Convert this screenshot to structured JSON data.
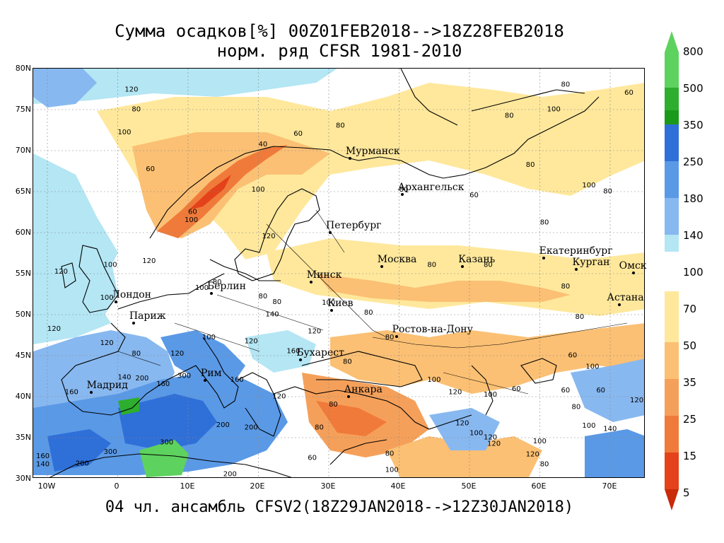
{
  "title_line1": "Сумма осадков[%] 00Z01FEB2018-->18Z28FEB2018",
  "title_line2": "норм. ряд CFSR 1981-2010",
  "footer": "04 чл. ансамбль CFSV2(18Z29JAN2018-->12Z30JAN2018)",
  "map": {
    "lat_labels": [
      "80N",
      "75N",
      "70N",
      "65N",
      "60N",
      "55N",
      "50N",
      "45N",
      "40N",
      "35N",
      "30N"
    ],
    "lon_labels": [
      "10W",
      "0",
      "10E",
      "20E",
      "30E",
      "40E",
      "50E",
      "60E",
      "70E"
    ],
    "extent": {
      "lon_min": -12,
      "lon_max": 75,
      "lat_min": 30,
      "lat_max": 80
    },
    "cities": [
      {
        "name": "Мурманск",
        "lon": 33.1,
        "lat": 68.97
      },
      {
        "name": "Архангельск",
        "lon": 40.5,
        "lat": 64.54
      },
      {
        "name": "Петербург",
        "lon": 30.3,
        "lat": 59.94
      },
      {
        "name": "Москва",
        "lon": 37.6,
        "lat": 55.75
      },
      {
        "name": "Казань",
        "lon": 49.1,
        "lat": 55.79
      },
      {
        "name": "Екатеринбург",
        "lon": 60.6,
        "lat": 56.84
      },
      {
        "name": "Курган",
        "lon": 65.3,
        "lat": 55.44
      },
      {
        "name": "Омск",
        "lon": 73.4,
        "lat": 54.99
      },
      {
        "name": "Минск",
        "lon": 27.56,
        "lat": 53.9
      },
      {
        "name": "Берлин",
        "lon": 13.4,
        "lat": 52.52
      },
      {
        "name": "Лондон",
        "lon": -0.13,
        "lat": 51.5
      },
      {
        "name": "Париж",
        "lon": 2.35,
        "lat": 48.86
      },
      {
        "name": "Киев",
        "lon": 30.52,
        "lat": 50.45
      },
      {
        "name": "Астана",
        "lon": 71.43,
        "lat": 51.13
      },
      {
        "name": "Ростов-на-Дону",
        "lon": 39.7,
        "lat": 47.23
      },
      {
        "name": "Бухарест",
        "lon": 26.1,
        "lat": 44.43
      },
      {
        "name": "Рим",
        "lon": 12.5,
        "lat": 41.9
      },
      {
        "name": "Мадрид",
        "lon": -3.7,
        "lat": 40.42
      },
      {
        "name": "Анкара",
        "lon": 32.86,
        "lat": 39.93
      }
    ],
    "contour_labels": [
      {
        "text": "120",
        "lon": 1,
        "lat": 77.2
      },
      {
        "text": "80",
        "lon": 2,
        "lat": 74.8
      },
      {
        "text": "100",
        "lon": 0,
        "lat": 72.0
      },
      {
        "text": "60",
        "lon": 4,
        "lat": 67.5
      },
      {
        "text": "60",
        "lon": 25,
        "lat": 71.8
      },
      {
        "text": "80",
        "lon": 31,
        "lat": 72.8
      },
      {
        "text": "40",
        "lon": 20,
        "lat": 70.5
      },
      {
        "text": "100",
        "lon": 19,
        "lat": 65.0
      },
      {
        "text": "60",
        "lon": 10,
        "lat": 62.3
      },
      {
        "text": "100",
        "lon": 9.5,
        "lat": 61.3
      },
      {
        "text": "120",
        "lon": 20.5,
        "lat": 59.3
      },
      {
        "text": "80",
        "lon": 63,
        "lat": 77.8
      },
      {
        "text": "100",
        "lon": 61,
        "lat": 74.8
      },
      {
        "text": "60",
        "lon": 72,
        "lat": 76.8
      },
      {
        "text": "80",
        "lon": 55,
        "lat": 74.0
      },
      {
        "text": "80",
        "lon": 58,
        "lat": 68.0
      },
      {
        "text": "100",
        "lon": 66,
        "lat": 65.5
      },
      {
        "text": "80",
        "lon": 69,
        "lat": 64.8
      },
      {
        "text": "80",
        "lon": 60,
        "lat": 61.0
      },
      {
        "text": "80",
        "lon": 40,
        "lat": 65.0
      },
      {
        "text": "60",
        "lon": 50,
        "lat": 64.3
      },
      {
        "text": "80",
        "lon": 44,
        "lat": 55.8
      },
      {
        "text": "80",
        "lon": 52,
        "lat": 55.8
      },
      {
        "text": "80",
        "lon": 63,
        "lat": 53.2
      },
      {
        "text": "80",
        "lon": 65,
        "lat": 49.5
      },
      {
        "text": "60",
        "lon": 64,
        "lat": 44.8
      },
      {
        "text": "100",
        "lon": 66.5,
        "lat": 43.4
      },
      {
        "text": "120",
        "lon": 3.5,
        "lat": 56.3
      },
      {
        "text": "100",
        "lon": -2,
        "lat": 55.8
      },
      {
        "text": "120",
        "lon": -9,
        "lat": 55.0
      },
      {
        "text": "100",
        "lon": -2.5,
        "lat": 51.8
      },
      {
        "text": "100",
        "lon": 11,
        "lat": 53.0
      },
      {
        "text": "80",
        "lon": 13.5,
        "lat": 53.7
      },
      {
        "text": "80",
        "lon": 20,
        "lat": 52.0
      },
      {
        "text": "140",
        "lon": 21,
        "lat": 49.8
      },
      {
        "text": "80",
        "lon": 22,
        "lat": 51.3
      },
      {
        "text": "100",
        "lon": 29,
        "lat": 51.2
      },
      {
        "text": "80",
        "lon": 35,
        "lat": 50.0
      },
      {
        "text": "120",
        "lon": -10,
        "lat": 48.0
      },
      {
        "text": "120",
        "lon": -2.5,
        "lat": 46.3
      },
      {
        "text": "80",
        "lon": 2,
        "lat": 45.0
      },
      {
        "text": "120",
        "lon": 7.5,
        "lat": 45.0
      },
      {
        "text": "100",
        "lon": 12,
        "lat": 47.0
      },
      {
        "text": "120",
        "lon": 18,
        "lat": 46.5
      },
      {
        "text": "120",
        "lon": 27,
        "lat": 47.7
      },
      {
        "text": "160",
        "lon": 24,
        "lat": 45.3
      },
      {
        "text": "300",
        "lon": 8.5,
        "lat": 42.3
      },
      {
        "text": "160",
        "lon": 5.5,
        "lat": 41.3
      },
      {
        "text": "140",
        "lon": 0,
        "lat": 42.1
      },
      {
        "text": "200",
        "lon": 2.5,
        "lat": 42.0
      },
      {
        "text": "160",
        "lon": -7.5,
        "lat": 40.3
      },
      {
        "text": "120",
        "lon": 22,
        "lat": 39.8
      },
      {
        "text": "160",
        "lon": 16,
        "lat": 41.8
      },
      {
        "text": "200",
        "lon": 14,
        "lat": 36.3
      },
      {
        "text": "200",
        "lon": 18,
        "lat": 36.0
      },
      {
        "text": "300",
        "lon": 6,
        "lat": 34.2
      },
      {
        "text": "300",
        "lon": -2,
        "lat": 33.0
      },
      {
        "text": "200",
        "lon": -6,
        "lat": 31.6
      },
      {
        "text": "160",
        "lon": -12,
        "lat": 32.5
      },
      {
        "text": "140",
        "lon": -13.5,
        "lat": 31.5
      },
      {
        "text": "200",
        "lon": 15,
        "lat": 30.3
      },
      {
        "text": "80",
        "lon": 28,
        "lat": 36.0
      },
      {
        "text": "60",
        "lon": 27,
        "lat": 32.3
      },
      {
        "text": "80",
        "lon": 38,
        "lat": 32.8
      },
      {
        "text": "100",
        "lon": 38,
        "lat": 30.8
      },
      {
        "text": "100",
        "lon": 44,
        "lat": 41.8
      },
      {
        "text": "120",
        "lon": 47,
        "lat": 40.3
      },
      {
        "text": "100",
        "lon": 52,
        "lat": 40.0
      },
      {
        "text": "60",
        "lon": 56,
        "lat": 40.7
      },
      {
        "text": "120",
        "lon": 48,
        "lat": 36.5
      },
      {
        "text": "100",
        "lon": 50,
        "lat": 35.3
      },
      {
        "text": "120",
        "lon": 52,
        "lat": 34.8
      },
      {
        "text": "120",
        "lon": 52.5,
        "lat": 34.0
      },
      {
        "text": "100",
        "lon": 59,
        "lat": 34.3
      },
      {
        "text": "120",
        "lon": 58,
        "lat": 32.7
      },
      {
        "text": "80",
        "lon": 60,
        "lat": 31.5
      },
      {
        "text": "80",
        "lon": 64.5,
        "lat": 38.5
      },
      {
        "text": "60",
        "lon": 63,
        "lat": 40.5
      },
      {
        "text": "100",
        "lon": 66,
        "lat": 36.2
      },
      {
        "text": "140",
        "lon": 69,
        "lat": 35.8
      },
      {
        "text": "120",
        "lon": 73,
        "lat": 39.3
      },
      {
        "text": "60",
        "lon": 68,
        "lat": 40.5
      },
      {
        "text": "80",
        "lon": 38,
        "lat": 47.0
      },
      {
        "text": "80",
        "lon": 30,
        "lat": 38.8
      },
      {
        "text": "80",
        "lon": 32,
        "lat": 44.0
      }
    ]
  },
  "legend": {
    "items": [
      {
        "label": "800",
        "color": "#5ed25e"
      },
      {
        "label": "500",
        "color": "#2eae2e"
      },
      {
        "label": "350",
        "color": "#1a9a1a"
      },
      {
        "label": "250",
        "color": "#2f6fd8"
      },
      {
        "label": "180",
        "color": "#5a99e6"
      },
      {
        "label": "140",
        "color": "#88b8f0"
      },
      {
        "label": "100",
        "color": "#b4e6f4"
      },
      {
        "label": "70",
        "color": "#ffffff"
      },
      {
        "label": "50",
        "color": "#ffe89c"
      },
      {
        "label": "35",
        "color": "#fbc074"
      },
      {
        "label": "25",
        "color": "#f5a05a"
      },
      {
        "label": "15",
        "color": "#f07a3a"
      },
      {
        "label": "5",
        "color": "#e4421a"
      }
    ],
    "bottom_color": "#c82a0a"
  },
  "colors": {
    "sea_wet": "#b4e6f4",
    "light_blue": "#88b8f0",
    "mid_blue": "#5a99e6",
    "blue": "#2f6fd8",
    "green": "#2eae2e",
    "light_green": "#5ed25e",
    "yellow": "#ffe89c",
    "orange_light": "#fbc074",
    "orange": "#f5a05a",
    "orange_dark": "#f07a3a",
    "red": "#e4421a"
  }
}
